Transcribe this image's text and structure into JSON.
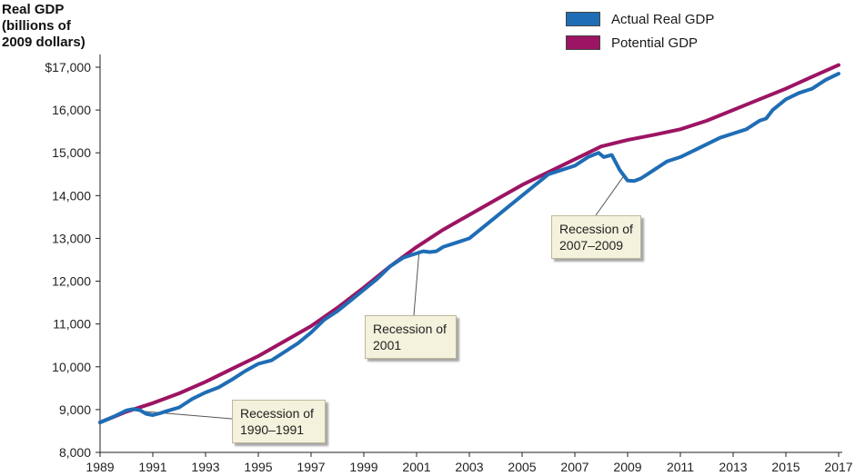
{
  "chart_data": {
    "type": "line",
    "ylabel": "Real GDP\n(billions of\n2009 dollars)",
    "ylim": [
      8000,
      17000
    ],
    "yticks": [
      8000,
      9000,
      10000,
      11000,
      12000,
      13000,
      14000,
      15000,
      16000,
      17000
    ],
    "ytick_labels": [
      "8,000",
      "9,000",
      "10,000",
      "11,000",
      "12,000",
      "13,000",
      "14,000",
      "15,000",
      "16,000",
      "$17,000"
    ],
    "xlim": [
      1989,
      2017
    ],
    "xticks": [
      1989,
      1991,
      1993,
      1995,
      1997,
      1999,
      2001,
      2003,
      2005,
      2007,
      2009,
      2011,
      2013,
      2015,
      2017
    ],
    "xtick_labels": [
      "1989",
      "1991",
      "1993",
      "1995",
      "1997",
      "1999",
      "2001",
      "2003",
      "2005",
      "2007",
      "2009",
      "2011",
      "2013",
      "2015",
      "2017"
    ],
    "legend_position": "top-right",
    "series": [
      {
        "name": "Actual Real GDP",
        "color": "#1f6db5",
        "x": [
          1989,
          1989.5,
          1990,
          1990.25,
          1990.5,
          1990.75,
          1991,
          1991.25,
          1991.5,
          1992,
          1992.5,
          1993,
          1993.5,
          1994,
          1994.5,
          1995,
          1995.5,
          1996,
          1996.5,
          1997,
          1997.5,
          1998,
          1998.5,
          1999,
          1999.5,
          2000,
          2000.5,
          2001,
          2001.25,
          2001.5,
          2001.75,
          2002,
          2002.5,
          2003,
          2003.5,
          2004,
          2004.5,
          2005,
          2005.5,
          2006,
          2006.5,
          2007,
          2007.5,
          2007.9,
          2008.1,
          2008.4,
          2008.7,
          2009,
          2009.25,
          2009.5,
          2009.75,
          2010,
          2010.5,
          2011,
          2011.5,
          2012,
          2012.5,
          2013,
          2013.5,
          2014,
          2014.25,
          2014.5,
          2015,
          2015.5,
          2016,
          2016.5,
          2017
        ],
        "values": [
          8700,
          8830,
          8980,
          9010,
          8990,
          8900,
          8870,
          8910,
          8960,
          9050,
          9250,
          9400,
          9520,
          9700,
          9900,
          10070,
          10150,
          10350,
          10550,
          10800,
          11100,
          11300,
          11550,
          11800,
          12050,
          12350,
          12550,
          12650,
          12700,
          12680,
          12700,
          12800,
          12900,
          13000,
          13250,
          13500,
          13750,
          14000,
          14250,
          14500,
          14600,
          14700,
          14900,
          15000,
          14900,
          14950,
          14600,
          14350,
          14340,
          14400,
          14500,
          14600,
          14800,
          14900,
          15050,
          15200,
          15350,
          15450,
          15550,
          15750,
          15800,
          16000,
          16250,
          16400,
          16500,
          16700,
          16850
        ]
      },
      {
        "name": "Potential GDP",
        "color": "#9c1463",
        "x": [
          1989,
          1990,
          1991,
          1992,
          1993,
          1994,
          1995,
          1996,
          1997,
          1998,
          1999,
          2000,
          2001,
          2002,
          2003,
          2004,
          2005,
          2006,
          2007,
          2008,
          2009,
          2010,
          2011,
          2012,
          2013,
          2014,
          2015,
          2016,
          2017
        ],
        "values": [
          8700,
          8950,
          9150,
          9380,
          9650,
          9950,
          10250,
          10600,
          10950,
          11380,
          11850,
          12350,
          12800,
          13200,
          13550,
          13900,
          14250,
          14550,
          14850,
          15150,
          15300,
          15420,
          15550,
          15750,
          16000,
          16250,
          16500,
          16780,
          17050
        ]
      }
    ],
    "annotations": [
      {
        "text": "Recession of\n1990–1991",
        "target": [
          1990.6,
          8960
        ]
      },
      {
        "text": "Recession of\n2001",
        "target": [
          2001.1,
          12720
        ]
      },
      {
        "text": "Recession of\n2007–2009",
        "target": [
          2008.9,
          14500
        ]
      }
    ]
  }
}
